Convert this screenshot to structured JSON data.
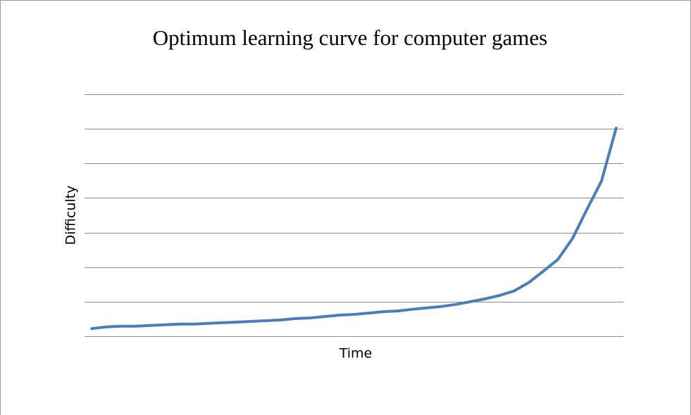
{
  "chart_data": {
    "type": "line",
    "title": "Optimum learning curve for computer games",
    "x_label": "Time",
    "y_label": "Difficulty",
    "categories": [
      null,
      null,
      null,
      null,
      null,
      null,
      null,
      null,
      null,
      null,
      null,
      null,
      null,
      null,
      null,
      null,
      null,
      null,
      null,
      null,
      null,
      null,
      null,
      null,
      null,
      null,
      null,
      null,
      null,
      null,
      null,
      null,
      null,
      null,
      null,
      null,
      null
    ],
    "series": [
      {
        "color": "#4a7ebb",
        "values": [
          0.22,
          0.27,
          0.29,
          0.29,
          0.31,
          0.33,
          0.35,
          0.35,
          0.37,
          0.39,
          0.41,
          0.43,
          0.45,
          0.47,
          0.51,
          0.53,
          0.57,
          0.61,
          0.63,
          0.67,
          0.71,
          0.73,
          0.78,
          0.82,
          0.86,
          0.92,
          1.0,
          1.08,
          1.18,
          1.31,
          1.55,
          1.88,
          2.22,
          2.82,
          3.67,
          4.49,
          6.02
        ]
      }
    ],
    "ylim": [
      0,
      7
    ],
    "yticks": [
      0,
      1,
      2,
      3,
      4,
      5,
      6,
      7
    ],
    "grid": true
  }
}
